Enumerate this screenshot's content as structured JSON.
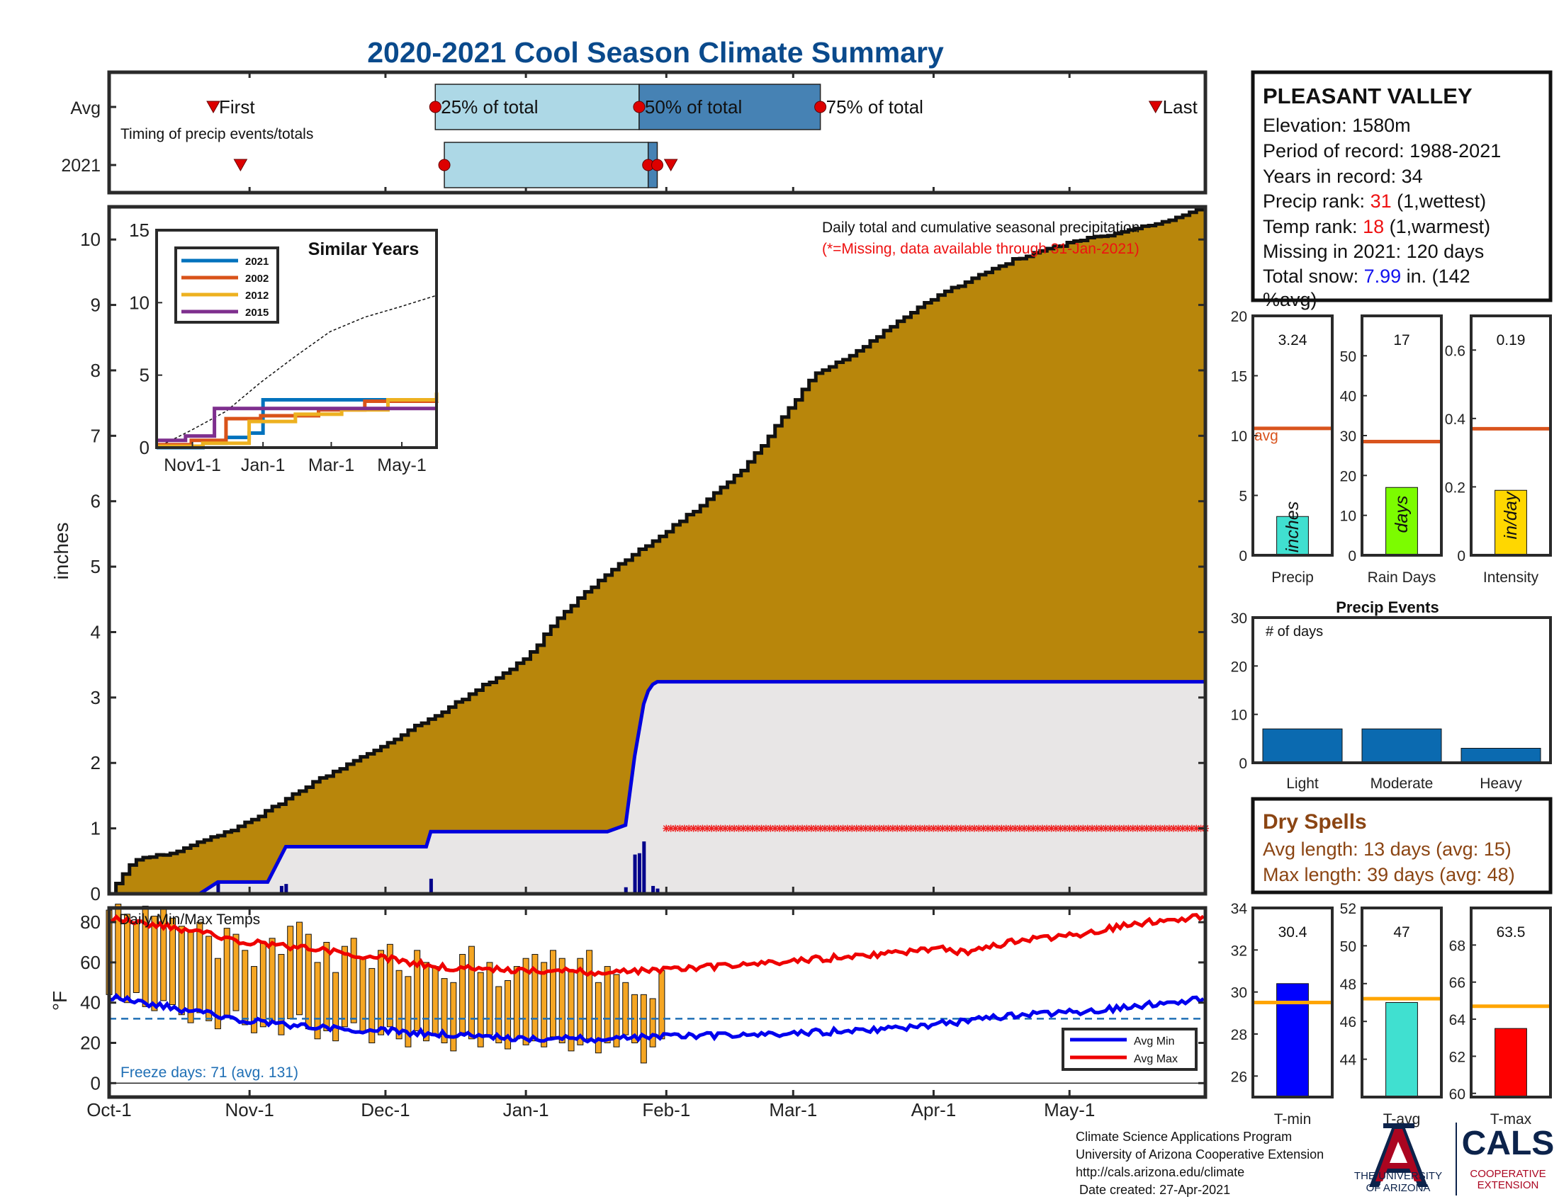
{
  "title": "2020-2021 Cool Season Climate Summary",
  "colors": {
    "title": "#0a4a8c",
    "precip_fill": "#b8860b",
    "current_line": "#0000dd",
    "missing": "#e8e6e6",
    "avg_line": "#d9541e",
    "box_light": "#add8e6",
    "box_dark": "#4682b4",
    "marker_red": "#dd0000",
    "temp_bar": "#f5a623",
    "avg_max": "#ee0000",
    "avg_min": "#0000ee",
    "freeze": "#1f6fb5",
    "events_bar": "#0b6ab0",
    "dry_spells": "#8b4513",
    "ua_red": "#ab0520",
    "ua_navy": "#0c234b",
    "tavg_bar": "#40e0d0",
    "ref_line": "#ffa500"
  },
  "timing": {
    "row_avg": "Avg",
    "row_2021": "2021",
    "subtitle": "Timing of precip events/totals",
    "labels": {
      "first": "First",
      "p25": "25% of total",
      "p50": "50% of total",
      "p75": "75% of total",
      "last": "Last"
    },
    "avg": {
      "first_day": 23,
      "p25_day": 72,
      "p50_day": 117,
      "p75_day": 157,
      "last_day": 231
    },
    "y2021": {
      "first_day": 29,
      "p25_day": 74,
      "p50_day": 119,
      "p75_day": 121,
      "last_day": 124
    }
  },
  "x_axis": {
    "ticks": [
      {
        "label": "Oct-1",
        "day": 0
      },
      {
        "label": "Nov-1",
        "day": 31
      },
      {
        "label": "Dec-1",
        "day": 61
      },
      {
        "label": "Jan-1",
        "day": 92
      },
      {
        "label": "Feb-1",
        "day": 123
      },
      {
        "label": "Mar-1",
        "day": 151
      },
      {
        "label": "Apr-1",
        "day": 182
      },
      {
        "label": "May-1",
        "day": 212
      }
    ],
    "end_day": 242
  },
  "precip_chart": {
    "ylabel": "inches",
    "ylim": [
      0,
      10.5
    ],
    "yticks": [
      0,
      1,
      2,
      3,
      4,
      5,
      6,
      7,
      8,
      9,
      10
    ],
    "annotation_line1": "Daily total and cumulative seasonal precipitation",
    "annotation_line2": "(*=Missing, data available through 31-Jan-2021)",
    "missing_level": 1.0,
    "missing_start_day": 123
  },
  "chart_data": [
    {
      "type": "area",
      "name": "cumulative seasonal precipitation",
      "x_days": [
        0,
        5,
        15,
        31,
        45,
        61,
        75,
        92,
        100,
        110,
        120,
        130,
        140,
        151,
        155,
        165,
        175,
        182,
        190,
        200,
        212,
        222,
        232,
        242
      ],
      "avg_cumulative": [
        0,
        0.5,
        0.65,
        1.1,
        1.7,
        2.3,
        2.85,
        3.6,
        4.3,
        4.9,
        5.4,
        5.9,
        6.5,
        7.5,
        7.9,
        8.3,
        8.8,
        9.1,
        9.4,
        9.7,
        9.95,
        10.1,
        10.25,
        10.5
      ],
      "series_2021_cumulative": {
        "x_days": [
          0,
          20,
          24,
          35,
          39,
          70,
          71,
          110,
          114,
          116,
          118,
          119,
          120,
          121,
          123
        ],
        "values": [
          0,
          0,
          0.18,
          0.18,
          0.72,
          0.72,
          0.95,
          0.95,
          1.05,
          2.1,
          2.9,
          3.1,
          3.2,
          3.24,
          3.24
        ]
      },
      "daily_precip_2021": [
        {
          "day": 24,
          "value": 0.18
        },
        {
          "day": 38,
          "value": 0.12
        },
        {
          "day": 39,
          "value": 0.15
        },
        {
          "day": 71,
          "value": 0.23
        },
        {
          "day": 114,
          "value": 0.1
        },
        {
          "day": 116,
          "value": 0.6
        },
        {
          "day": 117,
          "value": 0.62
        },
        {
          "day": 118,
          "value": 0.8
        },
        {
          "day": 120,
          "value": 0.12
        },
        {
          "day": 121,
          "value": 0.08
        }
      ]
    },
    {
      "type": "line",
      "title": "Similar Years",
      "xticks": [
        "Nov1-1",
        "Jan-1",
        "Mar-1",
        "May-1"
      ],
      "yticks": [
        0,
        5,
        10,
        15
      ],
      "ylim": [
        0,
        15
      ],
      "series": [
        {
          "name": "2021",
          "color": "#0072bd",
          "x": [
            0,
            40,
            60,
            80,
            92,
            140,
            200,
            242
          ],
          "values": [
            0,
            0.3,
            0.7,
            1.0,
            3.3,
            3.3,
            3.3,
            3.3
          ]
        },
        {
          "name": "2002",
          "color": "#d95319",
          "x": [
            0,
            30,
            60,
            90,
            140,
            180,
            242
          ],
          "values": [
            0.2,
            0.5,
            2.0,
            2.2,
            2.6,
            3.2,
            3.6
          ]
        },
        {
          "name": "2012",
          "color": "#edb120",
          "x": [
            0,
            40,
            80,
            120,
            160,
            200,
            242
          ],
          "values": [
            0.1,
            0.3,
            1.8,
            2.3,
            2.6,
            3.3,
            3.8
          ]
        },
        {
          "name": "2015",
          "color": "#7e2f8e",
          "x": [
            0,
            25,
            50,
            80,
            140,
            242
          ],
          "values": [
            0.5,
            0.8,
            2.7,
            2.7,
            2.7,
            2.7
          ]
        }
      ],
      "avg_dashed": {
        "x": [
          0,
          30,
          60,
          90,
          120,
          150,
          180,
          210,
          242
        ],
        "values": [
          0,
          1.2,
          2.5,
          4.5,
          6.3,
          8.0,
          9.0,
          9.7,
          10.5
        ]
      }
    },
    {
      "type": "bar",
      "name": "daily min/max temps",
      "title": "Daily Min/Max Temps",
      "ylabel": "°F",
      "ylim": [
        0,
        90
      ],
      "yticks": [
        0,
        20,
        40,
        60,
        80
      ],
      "legend": [
        "Avg Min",
        "Avg Max"
      ],
      "freeze_level": 32,
      "avg_max": {
        "x_days": [
          0,
          15,
          31,
          45,
          61,
          75,
          92,
          110,
          123,
          140,
          151,
          165,
          182,
          190,
          200,
          212,
          225,
          242
        ],
        "values": [
          82,
          77,
          70,
          67,
          62,
          57,
          56,
          55,
          56,
          59,
          61,
          63,
          67,
          65,
          71,
          73,
          79,
          83
        ]
      },
      "avg_min": {
        "x_days": [
          0,
          15,
          31,
          45,
          61,
          75,
          92,
          110,
          123,
          140,
          151,
          165,
          182,
          200,
          212,
          225,
          242
        ],
        "values": [
          43,
          37,
          31,
          28,
          26,
          24,
          22,
          22,
          23,
          24,
          25,
          26,
          29,
          34,
          35,
          38,
          42
        ]
      },
      "bars_2021": [
        {
          "day": 0,
          "min": 44,
          "max": 86
        },
        {
          "day": 2,
          "min": 42,
          "max": 89
        },
        {
          "day": 4,
          "min": 40,
          "max": 84
        },
        {
          "day": 6,
          "min": 45,
          "max": 80
        },
        {
          "day": 8,
          "min": 38,
          "max": 88
        },
        {
          "day": 10,
          "min": 36,
          "max": 83
        },
        {
          "day": 12,
          "min": 41,
          "max": 87
        },
        {
          "day": 14,
          "min": 39,
          "max": 82
        },
        {
          "day": 16,
          "min": 34,
          "max": 78
        },
        {
          "day": 18,
          "min": 30,
          "max": 76
        },
        {
          "day": 20,
          "min": 35,
          "max": 80
        },
        {
          "day": 22,
          "min": 31,
          "max": 73
        },
        {
          "day": 24,
          "min": 27,
          "max": 62
        },
        {
          "day": 26,
          "min": 33,
          "max": 77
        },
        {
          "day": 28,
          "min": 36,
          "max": 74
        },
        {
          "day": 30,
          "min": 29,
          "max": 66
        },
        {
          "day": 32,
          "min": 25,
          "max": 58
        },
        {
          "day": 34,
          "min": 28,
          "max": 70
        },
        {
          "day": 36,
          "min": 30,
          "max": 72
        },
        {
          "day": 38,
          "min": 24,
          "max": 64
        },
        {
          "day": 40,
          "min": 32,
          "max": 78
        },
        {
          "day": 42,
          "min": 34,
          "max": 80
        },
        {
          "day": 44,
          "min": 27,
          "max": 74
        },
        {
          "day": 46,
          "min": 22,
          "max": 60
        },
        {
          "day": 48,
          "min": 26,
          "max": 70
        },
        {
          "day": 50,
          "min": 21,
          "max": 55
        },
        {
          "day": 52,
          "min": 28,
          "max": 68
        },
        {
          "day": 54,
          "min": 30,
          "max": 72
        },
        {
          "day": 56,
          "min": 25,
          "max": 62
        },
        {
          "day": 58,
          "min": 20,
          "max": 57
        },
        {
          "day": 60,
          "min": 24,
          "max": 66
        },
        {
          "day": 62,
          "min": 28,
          "max": 69
        },
        {
          "day": 64,
          "min": 22,
          "max": 56
        },
        {
          "day": 66,
          "min": 18,
          "max": 53
        },
        {
          "day": 68,
          "min": 26,
          "max": 66
        },
        {
          "day": 70,
          "min": 21,
          "max": 60
        },
        {
          "day": 72,
          "min": 24,
          "max": 58
        },
        {
          "day": 74,
          "min": 20,
          "max": 52
        },
        {
          "day": 76,
          "min": 16,
          "max": 50
        },
        {
          "day": 78,
          "min": 25,
          "max": 64
        },
        {
          "day": 80,
          "min": 22,
          "max": 68
        },
        {
          "day": 82,
          "min": 18,
          "max": 55
        },
        {
          "day": 84,
          "min": 24,
          "max": 60
        },
        {
          "day": 86,
          "min": 20,
          "max": 48
        },
        {
          "day": 88,
          "min": 17,
          "max": 51
        },
        {
          "day": 90,
          "min": 22,
          "max": 58
        },
        {
          "day": 92,
          "min": 19,
          "max": 62
        },
        {
          "day": 94,
          "min": 21,
          "max": 64
        },
        {
          "day": 96,
          "min": 18,
          "max": 60
        },
        {
          "day": 98,
          "min": 23,
          "max": 66
        },
        {
          "day": 100,
          "min": 20,
          "max": 62
        },
        {
          "day": 102,
          "min": 16,
          "max": 56
        },
        {
          "day": 104,
          "min": 19,
          "max": 62
        },
        {
          "day": 106,
          "min": 22,
          "max": 66
        },
        {
          "day": 108,
          "min": 15,
          "max": 50
        },
        {
          "day": 110,
          "min": 20,
          "max": 58
        },
        {
          "day": 112,
          "min": 18,
          "max": 54
        },
        {
          "day": 114,
          "min": 24,
          "max": 50
        },
        {
          "day": 116,
          "min": 20,
          "max": 44
        },
        {
          "day": 118,
          "min": 10,
          "max": 44
        },
        {
          "day": 120,
          "min": 18,
          "max": 42
        },
        {
          "day": 122,
          "min": 22,
          "max": 56
        }
      ]
    },
    {
      "type": "bar",
      "name": "Precip",
      "ylim": [
        0,
        20
      ],
      "yticks": [
        0,
        5,
        10,
        15,
        20
      ],
      "value": 3.24,
      "value_label": "3.24",
      "avg": 10.6,
      "avg_label": "avg",
      "unit": "inches",
      "color": "#40e0d0"
    },
    {
      "type": "bar",
      "name": "Rain Days",
      "ylim": [
        0,
        60
      ],
      "yticks": [
        0,
        10,
        20,
        30,
        40,
        50
      ],
      "value": 17,
      "value_label": "17",
      "avg": 28.5,
      "unit": "days",
      "color": "#7cfc00"
    },
    {
      "type": "bar",
      "name": "Intensity",
      "ylim": [
        0,
        0.7
      ],
      "yticks": [
        0,
        0.2,
        0.4,
        0.6
      ],
      "ytick_labels": [
        "0",
        "0.2",
        "0.4",
        "0.6"
      ],
      "value": 0.19,
      "value_label": "0.19",
      "avg": 0.37,
      "unit": "in/day",
      "color": "#ffd700"
    },
    {
      "type": "bar",
      "name": "Precip Events",
      "title": "Precip Events",
      "annotation": "# of days",
      "ylim": [
        0,
        30
      ],
      "yticks": [
        0,
        10,
        20,
        30
      ],
      "categories": [
        "Light",
        "Moderate",
        "Heavy"
      ],
      "values": [
        7,
        7,
        3
      ]
    },
    {
      "type": "bar",
      "name": "T-min",
      "ylim": [
        25,
        34
      ],
      "yticks": [
        26,
        28,
        30,
        32,
        34
      ],
      "value": 30.4,
      "value_label": "30.4",
      "ref": 29.5,
      "color": "#0000ff"
    },
    {
      "type": "bar",
      "name": "T-avg",
      "ylim": [
        42,
        52
      ],
      "yticks": [
        44,
        46,
        48,
        50,
        52
      ],
      "value": 47,
      "value_label": "47",
      "ref": 47.2,
      "color": "#40e0d0"
    },
    {
      "type": "bar",
      "name": "T-max",
      "ylim": [
        59.8,
        70
      ],
      "yticks": [
        60,
        62,
        64,
        66,
        68
      ],
      "value": 63.5,
      "value_label": "63.5",
      "ref": 64.7,
      "color": "#ff0000"
    }
  ],
  "freeze_days_text": "Freeze days: 71 (avg. 131)",
  "station": {
    "name": "PLEASANT VALLEY",
    "line_elevation": "Elevation: 1580m",
    "line_period": "Period of record: 1988-2021",
    "line_years": "Years in record: 34",
    "precip_rank_prefix": "Precip rank: ",
    "precip_rank_value": "31",
    "precip_rank_suffix": " (1,wettest)",
    "temp_rank_prefix": "Temp rank: ",
    "temp_rank_value": "18",
    "temp_rank_suffix": " (1,warmest)",
    "line_missing": "Missing in 2021: 120 days",
    "snow_prefix": "Total snow: ",
    "snow_value": "7.99",
    "snow_suffix": " in. (142",
    "snow_suffix2": "%avg)"
  },
  "dry_spells": {
    "title": "Dry Spells",
    "avg_length": "Avg length: 13 days (avg: 15)",
    "max_length": "Max length: 39 days (avg: 48)"
  },
  "footer": {
    "line1": "Climate Science Applications Program",
    "line2": "University of Arizona Cooperative Extension",
    "line3": "http://cals.arizona.edu/climate",
    "line4": " Date created: 27-Apr-2021"
  },
  "logos": {
    "ua_line1": "THE UNIVERSITY",
    "ua_line2": "OF ARIZONA",
    "cals": "CALS",
    "cals_sub1": "COOPERATIVE",
    "cals_sub2": "EXTENSION"
  }
}
